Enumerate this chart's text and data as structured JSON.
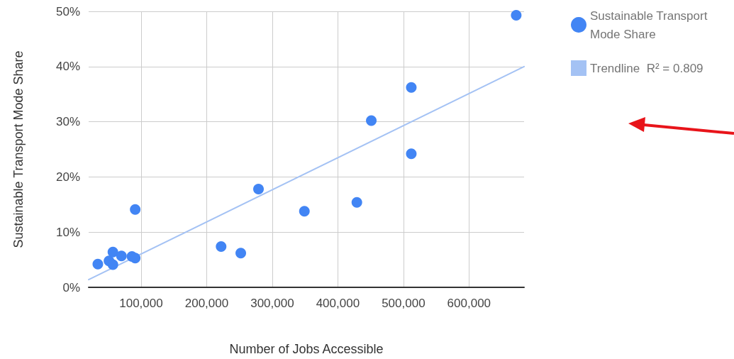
{
  "chart_data": {
    "type": "scatter",
    "xlabel": "Number of Jobs Accessible",
    "ylabel": "Sustainable Transport Mode Share",
    "xlim": [
      20000,
      684000
    ],
    "xticks": [
      {
        "value": 100000,
        "label": "100,000"
      },
      {
        "value": 200000,
        "label": "200,000"
      },
      {
        "value": 300000,
        "label": "300,000"
      },
      {
        "value": 400000,
        "label": "400,000"
      },
      {
        "value": 500000,
        "label": "500,000"
      },
      {
        "value": 600000,
        "label": "600,000"
      }
    ],
    "ylim": [
      0,
      50
    ],
    "yticks": [
      {
        "value": 0,
        "label": "0%"
      },
      {
        "value": 10,
        "label": "10%"
      },
      {
        "value": 20,
        "label": "20%"
      },
      {
        "value": 30,
        "label": "30%"
      },
      {
        "value": 40,
        "label": "40%"
      },
      {
        "value": 50,
        "label": "50%"
      }
    ],
    "grid": true,
    "legend": "top right",
    "series": [
      {
        "name": "Sustainable Transport Mode Share",
        "marker": "circle",
        "color": "#4285f4",
        "x": [
          34000,
          51000,
          57000,
          57000,
          70000,
          86000,
          91000,
          91000,
          222000,
          252000,
          279000,
          349000,
          429000,
          451000,
          512000,
          512000,
          672000
        ],
        "values": [
          4.2,
          4.8,
          6.4,
          4.1,
          5.7,
          5.6,
          5.3,
          14.1,
          7.4,
          6.2,
          17.8,
          13.8,
          15.4,
          30.2,
          36.2,
          24.2,
          49.3
        ]
      },
      {
        "name": "Trendline  R² = 0.809",
        "type": "line",
        "marker": "none",
        "color": "#a4c2f4",
        "line_style": "solid",
        "x": [
          20000,
          684000
        ],
        "values": [
          1.4,
          40
        ]
      }
    ]
  }
}
